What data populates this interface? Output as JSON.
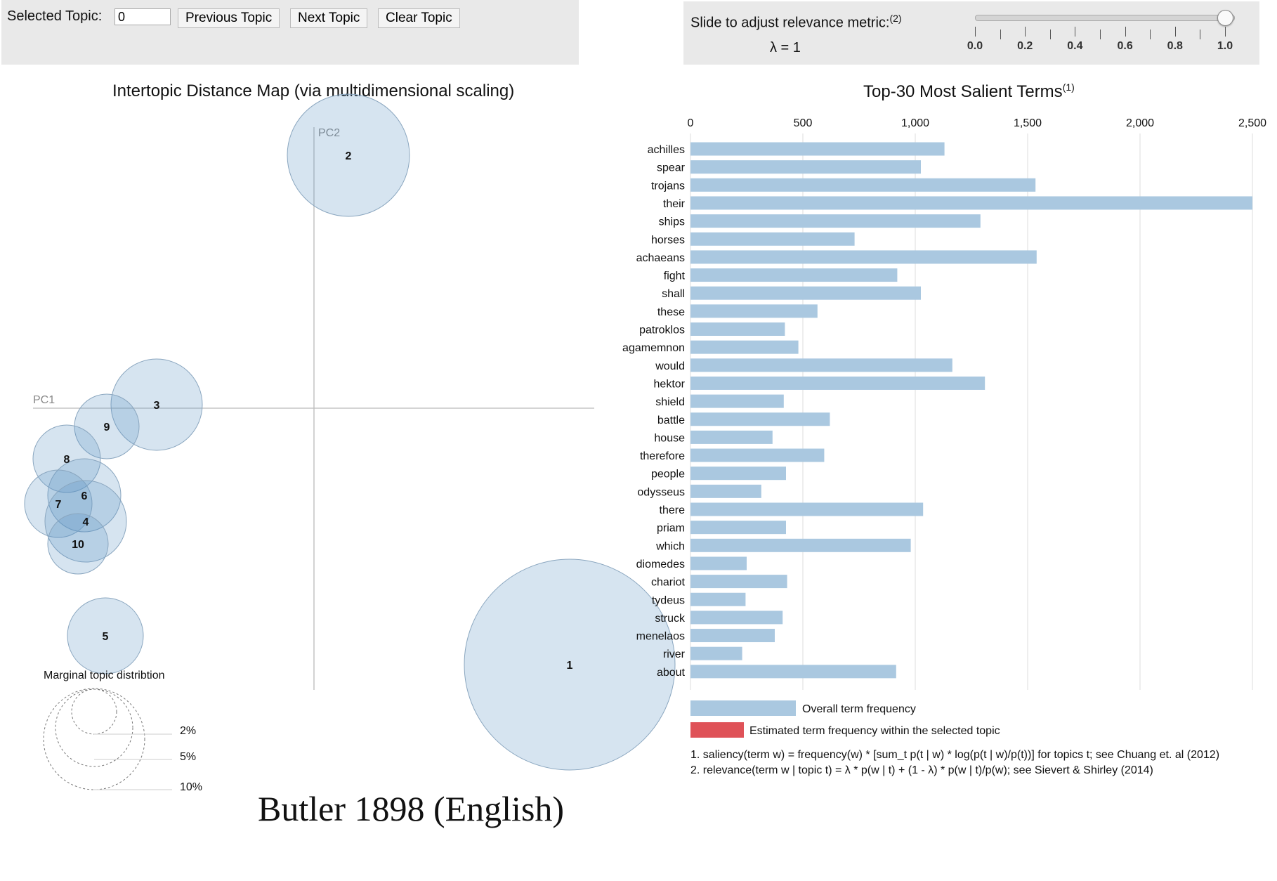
{
  "topic_controls": {
    "selected_label": "Selected Topic:",
    "selected_value": "0",
    "prev_label": "Previous Topic",
    "next_label": "Next Topic",
    "clear_label": "Clear Topic"
  },
  "relevance": {
    "label": "Slide to adjust relevance metric:",
    "label_note": "(2)",
    "lambda_text": "λ = 1",
    "lambda_value": 1.0,
    "ticks": [
      "0.0",
      "0.2",
      "0.4",
      "0.6",
      "0.8",
      "1.0"
    ]
  },
  "intertopic_map": {
    "title": "Intertopic Distance Map (via multidimensional scaling)",
    "pc1_label": "PC1",
    "pc2_label": "PC2",
    "topics": [
      "1",
      "2",
      "3",
      "4",
      "5",
      "6",
      "7",
      "8",
      "9",
      "10"
    ],
    "marginal_title": "Marginal topic distribtion",
    "marginal_levels": [
      "2%",
      "5%",
      "10%"
    ]
  },
  "bar_chart": {
    "title": "Top-30 Most Salient Terms",
    "title_note": "(1)",
    "legend_overall": "Overall term frequency",
    "legend_selected": "Estimated term frequency within the selected topic",
    "footnote_1": "1. saliency(term w) = frequency(w) * [sum_t p(t | w) * log(p(t | w)/p(t))] for topics t; see Chuang et. al (2012)",
    "footnote_2": "2. relevance(term w | topic t) = λ * p(w | t) + (1 - λ) * p(w | t)/p(w); see Sievert & Shirley (2014)"
  },
  "chart_data": {
    "type": "bar",
    "orientation": "horizontal",
    "categories": [
      "achilles",
      "spear",
      "trojans",
      "their",
      "ships",
      "horses",
      "achaeans",
      "fight",
      "shall",
      "these",
      "patroklos",
      "agamemnon",
      "would",
      "hektor",
      "shield",
      "battle",
      "house",
      "therefore",
      "people",
      "odysseus",
      "there",
      "priam",
      "which",
      "diomedes",
      "chariot",
      "tydeus",
      "struck",
      "menelaos",
      "river",
      "about"
    ],
    "x_tick_labels": [
      "0",
      "500",
      "1,000",
      "1,500",
      "2,000",
      "2,500"
    ],
    "xlim": [
      0,
      2500
    ],
    "series": [
      {
        "name": "Overall term frequency",
        "values": [
          1130,
          1025,
          1535,
          2500,
          1290,
          730,
          1540,
          920,
          1025,
          565,
          420,
          480,
          1165,
          1310,
          415,
          620,
          365,
          595,
          425,
          315,
          1035,
          425,
          980,
          250,
          430,
          245,
          410,
          375,
          230,
          915
        ]
      }
    ],
    "colors": {
      "overall": "#aac8e0",
      "selected": "#df5258"
    },
    "grid": true
  },
  "caption": "Butler 1898 (English)"
}
